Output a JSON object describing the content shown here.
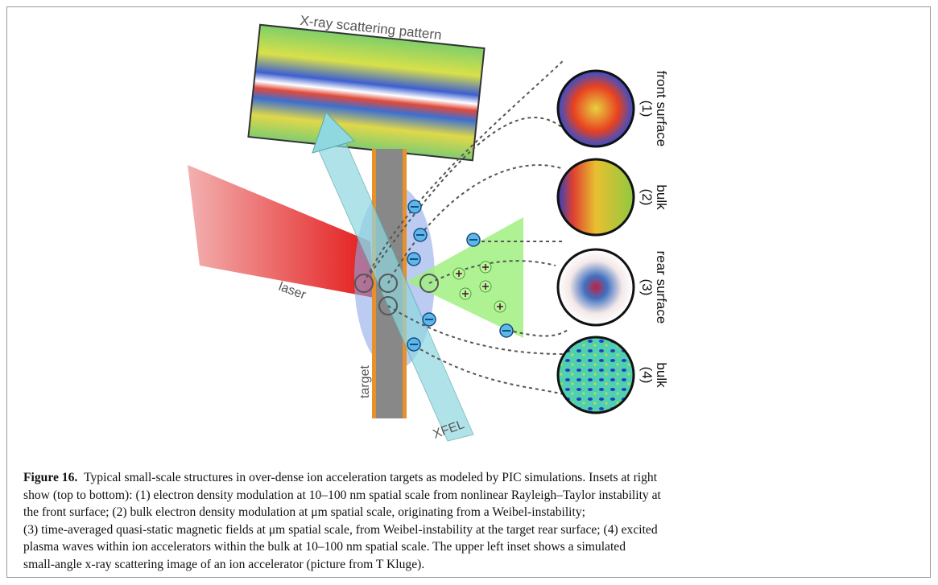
{
  "figure": {
    "labels": {
      "pattern": "X-ray scattering pattern",
      "laser": "laser",
      "target": "target",
      "xfel": "XFEL"
    },
    "insets": [
      {
        "number": "(1)",
        "label": "front surface"
      },
      {
        "number": "(2)",
        "label": "bulk"
      },
      {
        "number": "(3)",
        "label": "rear surface"
      },
      {
        "number": "(4)",
        "label": "bulk"
      }
    ]
  },
  "caption": {
    "label": "Figure 16.",
    "lines": [
      "Typical small-scale structures in over-dense ion acceleration targets as modeled by PIC simulations. Insets at right",
      "show (top to bottom): (1) electron density modulation at 10–100 nm spatial scale from nonlinear Rayleigh–Taylor instability at",
      "the front surface; (2) bulk electron density modulation at μm spatial scale, originating from a Weibel-instability;",
      "(3) time-averaged quasi-static magnetic fields at μm spatial scale, from Weibel-instability at the target rear surface; (4) excited",
      "plasma waves within ion accelerators within the bulk at 10–100 nm spatial scale. The upper left inset shows a simulated",
      "small-angle x-ray scattering image of an ion accelerator (picture from T Kluge)."
    ]
  }
}
